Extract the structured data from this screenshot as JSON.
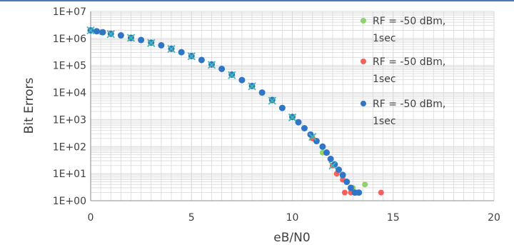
{
  "colors": {
    "top_rule": "#4a79b5",
    "grid": "#d9d9d9",
    "axis": "#8c8c8c",
    "text": "#404040"
  },
  "chart_data": {
    "type": "scatter",
    "title": "",
    "xlabel": "eB/N0",
    "ylabel": "Bit Errors",
    "x_ticks": [
      "0",
      "5",
      "10",
      "15",
      "20"
    ],
    "y_ticks": [
      "1E+00",
      "1E+01",
      "1E+02",
      "1E+03",
      "1E+04",
      "1E+05",
      "1E+06",
      "1E+07"
    ],
    "xlim": [
      0,
      20
    ],
    "ylim": [
      1,
      10000000
    ],
    "y_scale": "log",
    "grid": true,
    "legend_position": "right",
    "series": [
      {
        "name": "RF = -50 dBm, 1sec",
        "marker": "circle",
        "color": "#8ed36c",
        "points": [
          [
            0,
            2000000
          ],
          [
            0.5,
            1700000
          ],
          [
            1,
            1500000
          ],
          [
            2,
            1100000
          ],
          [
            3,
            700000
          ],
          [
            4,
            420000
          ],
          [
            5,
            230000
          ],
          [
            6,
            110000
          ],
          [
            7,
            47000
          ],
          [
            8,
            18000
          ],
          [
            9,
            5500
          ],
          [
            10,
            1300
          ],
          [
            11,
            220
          ],
          [
            11.5,
            60
          ],
          [
            12,
            20
          ],
          [
            12.5,
            8
          ],
          [
            13,
            3
          ],
          [
            13.6,
            4
          ]
        ]
      },
      {
        "name": "RF = -50 dBm, 1sec",
        "marker": "circle",
        "color": "#f4605c",
        "points": [
          [
            0,
            2000000
          ],
          [
            1,
            1500000
          ],
          [
            2,
            1000000
          ],
          [
            3,
            700000
          ],
          [
            4,
            400000
          ],
          [
            5,
            220000
          ],
          [
            6,
            105000
          ],
          [
            7,
            45000
          ],
          [
            8,
            17000
          ],
          [
            9,
            5200
          ],
          [
            10,
            1250
          ],
          [
            11,
            200
          ],
          [
            11.7,
            60
          ],
          [
            12,
            20
          ],
          [
            12.2,
            10
          ],
          [
            12.5,
            6
          ],
          [
            12.6,
            2
          ],
          [
            12.9,
            2
          ],
          [
            13.2,
            2
          ],
          [
            14.4,
            2
          ]
        ]
      },
      {
        "name": "RF = -50 dBm, 1sec",
        "marker": "circle",
        "color": "#2f75c8",
        "points": [
          [
            0,
            2000000
          ],
          [
            0.3,
            1850000
          ],
          [
            0.6,
            1700000
          ],
          [
            1,
            1500000
          ],
          [
            1.5,
            1300000
          ],
          [
            2,
            1050000
          ],
          [
            2.5,
            880000
          ],
          [
            3,
            700000
          ],
          [
            3.5,
            560000
          ],
          [
            4,
            420000
          ],
          [
            4.5,
            310000
          ],
          [
            5,
            225000
          ],
          [
            5.5,
            160000
          ],
          [
            6,
            110000
          ],
          [
            6.5,
            75000
          ],
          [
            7,
            46000
          ],
          [
            7.5,
            29000
          ],
          [
            8,
            17500
          ],
          [
            8.5,
            10000
          ],
          [
            9,
            5300
          ],
          [
            9.5,
            2700
          ],
          [
            10,
            1250
          ],
          [
            10.3,
            800
          ],
          [
            10.6,
            480
          ],
          [
            10.9,
            280
          ],
          [
            11.2,
            160
          ],
          [
            11.5,
            100
          ],
          [
            11.7,
            60
          ],
          [
            11.9,
            35
          ],
          [
            12.1,
            22
          ],
          [
            12.3,
            14
          ],
          [
            12.5,
            9
          ],
          [
            12.7,
            5
          ],
          [
            12.9,
            3
          ],
          [
            13.1,
            2
          ],
          [
            13.3,
            2
          ]
        ]
      },
      {
        "name": "",
        "marker": "x",
        "color": "#3fb9b0",
        "points": [
          [
            0,
            2000000
          ],
          [
            1,
            1450000
          ],
          [
            2,
            1050000
          ],
          [
            3,
            680000
          ],
          [
            4,
            410000
          ],
          [
            5,
            220000
          ],
          [
            6,
            105000
          ],
          [
            7,
            44000
          ],
          [
            8,
            17000
          ],
          [
            9,
            5000
          ],
          [
            10,
            1200
          ],
          [
            11,
            230
          ],
          [
            12,
            20
          ]
        ]
      }
    ]
  }
}
